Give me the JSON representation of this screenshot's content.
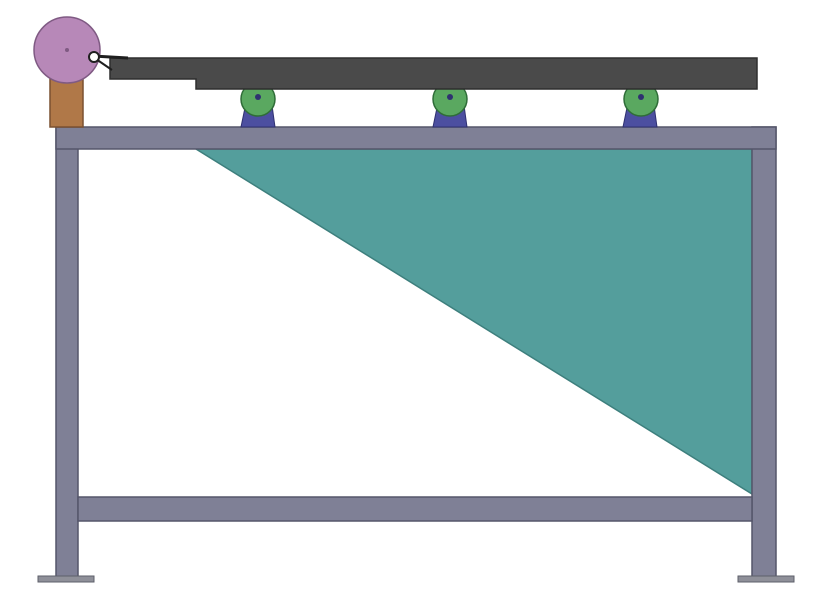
{
  "colors": {
    "background": "#ffffff",
    "frame_fill": "#7f8096",
    "frame_edge": "#55566a",
    "panel_fill": "#549e9c",
    "panel_edge": "#3d7f7d",
    "rail_fill": "#4a4a4a",
    "rail_edge": "#2e2e2e",
    "roller_fill": "#5aa860",
    "roller_edge": "#2f6d38",
    "support_fill": "#4c4fa0",
    "support_edge": "#2f3170",
    "motor_fill": "#b788b8",
    "motor_edge": "#7f5a83",
    "mount_fill": "#b07848",
    "mount_edge": "#7a5030",
    "foot_fill": "#8f9099",
    "foot_edge": "#5e5f6a",
    "link_color": "#1f1f1f"
  },
  "components": [
    "motor-disc-icon",
    "motor-mount-block",
    "drive-link",
    "sliding-rail",
    "roller-support-1",
    "roller-support-2",
    "roller-support-3",
    "frame-top-beam",
    "frame-left-post",
    "frame-right-post",
    "frame-bottom-beam",
    "triangular-panel",
    "left-foot-plate",
    "right-foot-plate"
  ]
}
